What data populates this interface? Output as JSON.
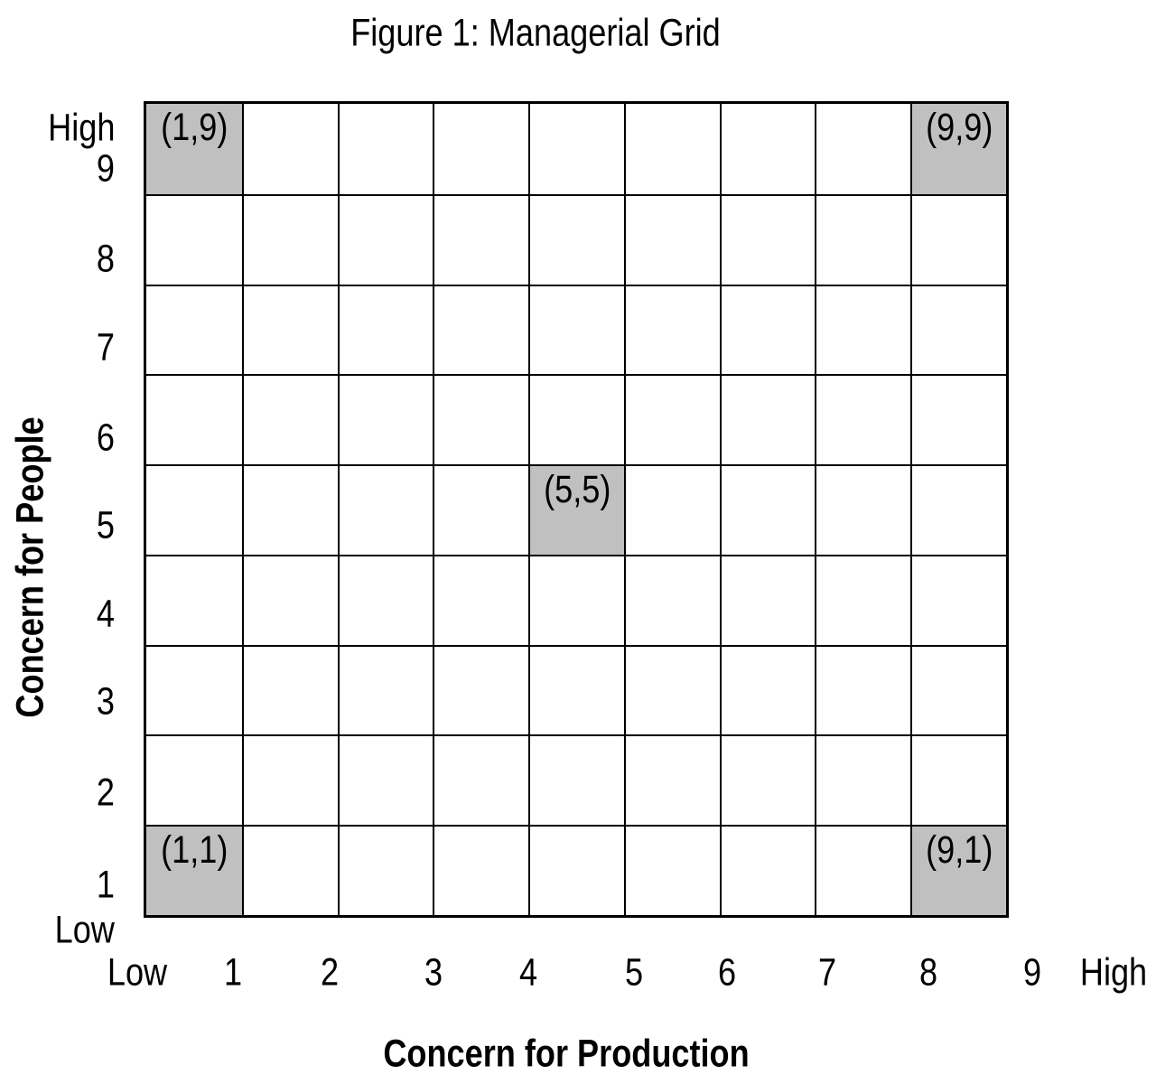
{
  "figure": {
    "title": "Figure 1: Managerial Grid",
    "x_axis_title": "Concern for Production",
    "y_axis_title": "Concern for People"
  },
  "grid": {
    "rows": 9,
    "cols": 9,
    "line_color": "#000000",
    "cell_fill_color": "#c0c0c0",
    "shaded_cells": [
      {
        "production": 1,
        "people": 9,
        "label": "(1,9)"
      },
      {
        "production": 9,
        "people": 9,
        "label": "(9,9)"
      },
      {
        "production": 5,
        "people": 5,
        "label": "(5,5)"
      },
      {
        "production": 1,
        "people": 1,
        "label": "(1,1)"
      },
      {
        "production": 9,
        "people": 1,
        "label": "(9,1)"
      }
    ]
  },
  "x_axis": {
    "labels": [
      "Low",
      "1",
      "2",
      "3",
      "4",
      "5",
      "6",
      "7",
      "8",
      "9",
      "High"
    ]
  },
  "y_axis": {
    "labels": [
      "High",
      "9",
      "8",
      "7",
      "6",
      "5",
      "4",
      "3",
      "2",
      "1",
      "Low"
    ]
  },
  "chart_data": {
    "type": "heatmap",
    "title": "Figure 1: Managerial Grid",
    "xlabel": "Concern for Production",
    "ylabel": "Concern for People",
    "x_ticks": [
      "Low",
      "1",
      "2",
      "3",
      "4",
      "5",
      "6",
      "7",
      "8",
      "9",
      "High"
    ],
    "y_ticks": [
      "High",
      "9",
      "8",
      "7",
      "6",
      "5",
      "4",
      "3",
      "2",
      "1",
      "Low"
    ],
    "xlim": [
      1,
      9
    ],
    "ylim": [
      1,
      9
    ],
    "grid_cells": "9x9",
    "grid_on": true,
    "legend": "none",
    "highlight_color": "#c0c0c0",
    "highlighted_cells": [
      {
        "x": 1,
        "y": 9,
        "label": "(1,9)"
      },
      {
        "x": 9,
        "y": 9,
        "label": "(9,9)"
      },
      {
        "x": 5,
        "y": 5,
        "label": "(5,5)"
      },
      {
        "x": 1,
        "y": 1,
        "label": "(1,1)"
      },
      {
        "x": 9,
        "y": 1,
        "label": "(9,1)"
      }
    ]
  }
}
